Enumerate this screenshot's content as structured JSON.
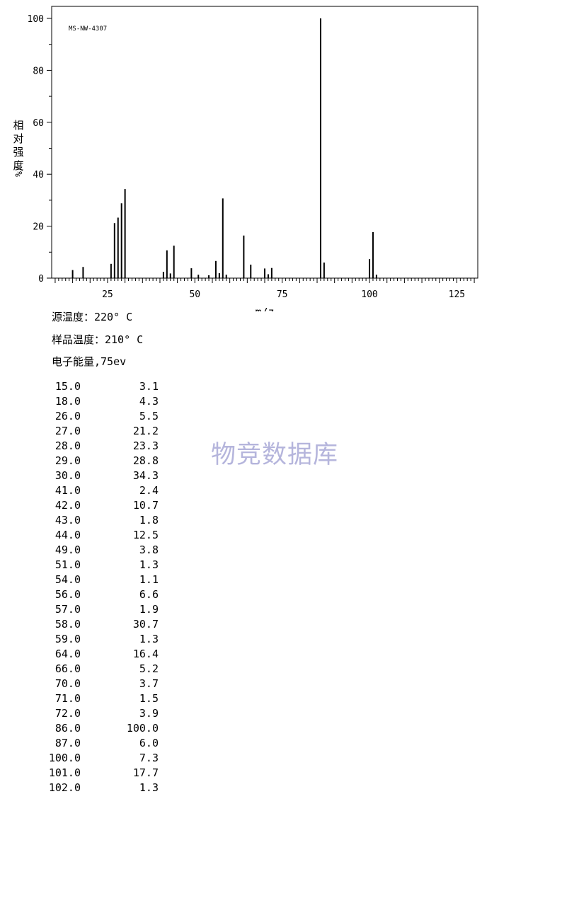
{
  "chart_data": {
    "type": "bar",
    "title": "MS-NW-4307",
    "xlabel": "m/z",
    "ylabel": "相对强度",
    "ylabel_unit": "%/",
    "xlim": [
      9,
      131
    ],
    "ylim": [
      0,
      100
    ],
    "xticks": [
      25,
      50,
      75,
      100,
      125
    ],
    "yticks": [
      0,
      20,
      40,
      60,
      80,
      100
    ],
    "grid": false,
    "x": [
      15,
      18,
      26,
      27,
      28,
      29,
      30,
      41,
      42,
      43,
      44,
      49,
      51,
      54,
      56,
      57,
      58,
      59,
      64,
      66,
      70,
      71,
      72,
      86,
      87,
      100,
      101,
      102
    ],
    "values": [
      3.1,
      4.3,
      5.5,
      21.2,
      23.3,
      28.8,
      34.3,
      2.4,
      10.7,
      1.8,
      12.5,
      3.8,
      1.3,
      1.1,
      6.6,
      1.9,
      30.7,
      1.3,
      16.4,
      5.2,
      3.7,
      1.5,
      3.9,
      100.0,
      6.0,
      7.3,
      17.7,
      1.3
    ]
  },
  "info": {
    "source_temp": "源温度：220° C",
    "sample_temp": "样品温度：210° C",
    "electron_energy": "电子能量,75ev"
  },
  "peaks": [
    {
      "mz": "15.0",
      "intensity": "3.1"
    },
    {
      "mz": "18.0",
      "intensity": "4.3"
    },
    {
      "mz": "26.0",
      "intensity": "5.5"
    },
    {
      "mz": "27.0",
      "intensity": "21.2"
    },
    {
      "mz": "28.0",
      "intensity": "23.3"
    },
    {
      "mz": "29.0",
      "intensity": "28.8"
    },
    {
      "mz": "30.0",
      "intensity": "34.3"
    },
    {
      "mz": "41.0",
      "intensity": "2.4"
    },
    {
      "mz": "42.0",
      "intensity": "10.7"
    },
    {
      "mz": "43.0",
      "intensity": "1.8"
    },
    {
      "mz": "44.0",
      "intensity": "12.5"
    },
    {
      "mz": "49.0",
      "intensity": "3.8"
    },
    {
      "mz": "51.0",
      "intensity": "1.3"
    },
    {
      "mz": "54.0",
      "intensity": "1.1"
    },
    {
      "mz": "56.0",
      "intensity": "6.6"
    },
    {
      "mz": "57.0",
      "intensity": "1.9"
    },
    {
      "mz": "58.0",
      "intensity": "30.7"
    },
    {
      "mz": "59.0",
      "intensity": "1.3"
    },
    {
      "mz": "64.0",
      "intensity": "16.4"
    },
    {
      "mz": "66.0",
      "intensity": "5.2"
    },
    {
      "mz": "70.0",
      "intensity": "3.7"
    },
    {
      "mz": "71.0",
      "intensity": "1.5"
    },
    {
      "mz": "72.0",
      "intensity": "3.9"
    },
    {
      "mz": "86.0",
      "intensity": "100.0"
    },
    {
      "mz": "87.0",
      "intensity": "6.0"
    },
    {
      "mz": "100.0",
      "intensity": "7.3"
    },
    {
      "mz": "101.0",
      "intensity": "17.7"
    },
    {
      "mz": "102.0",
      "intensity": "1.3"
    }
  ],
  "watermark": "物竞数据库"
}
